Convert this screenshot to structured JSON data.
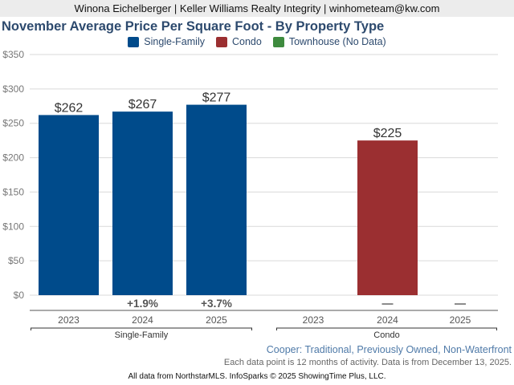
{
  "header": {
    "agent_line": "Winona Eichelberger | Keller Williams Realty Integrity | winhometeam@kw.com"
  },
  "legend": [
    {
      "label": "Single-Family",
      "color": "#004b8b"
    },
    {
      "label": "Condo",
      "color": "#9b2f31"
    },
    {
      "label": "Townhouse (No Data)",
      "color": "#3e8b3e"
    }
  ],
  "chart_data": {
    "type": "bar",
    "title": "November Average Price Per Square Foot - By Property Type",
    "xlabel": "",
    "ylabel": "",
    "ylim": [
      0,
      350
    ],
    "yticks": [
      0,
      50,
      100,
      150,
      200,
      250,
      300,
      350
    ],
    "ytick_labels": [
      "$0",
      "$50",
      "$100",
      "$150",
      "$200",
      "$250",
      "$300",
      "$350"
    ],
    "grid": true,
    "legend_position": "top-center",
    "groups": [
      {
        "name": "Single-Family",
        "color": "#004b8b",
        "categories": [
          "2023",
          "2024",
          "2025"
        ],
        "values": [
          262,
          267,
          277
        ],
        "value_labels": [
          "$262",
          "$267",
          "$277"
        ],
        "changes": [
          "",
          "+1.9%",
          "+3.7%"
        ]
      },
      {
        "name": "Condo",
        "color": "#9b2f31",
        "categories": [
          "2023",
          "2024",
          "2025"
        ],
        "values": [
          null,
          225,
          null
        ],
        "value_labels": [
          "",
          "$225",
          ""
        ],
        "changes": [
          "",
          "—",
          "—"
        ]
      }
    ]
  },
  "subtitle": "Cooper: Traditional, Previously Owned, Non-Waterfront",
  "note": "Each data point is 12 months of activity. Data is from December 13, 2025.",
  "footer": "All data from NorthstarMLS. InfoSparks © 2025 ShowingTime Plus, LLC."
}
